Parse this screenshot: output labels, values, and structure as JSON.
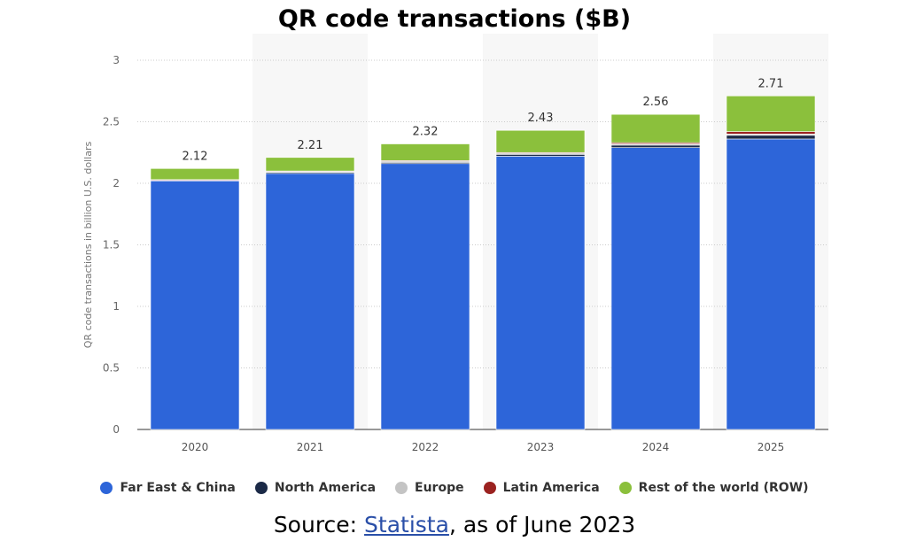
{
  "title": "QR code transactions ($B)",
  "source": {
    "prefix": "Source: ",
    "link": "Statista",
    "suffix": ", as of June 2023"
  },
  "chart_data": {
    "type": "bar",
    "stacked": true,
    "ylabel": "QR code transactions in billion U.S. dollars",
    "ylim": [
      0,
      3
    ],
    "yticks": [
      "0",
      "0.5",
      "1",
      "1.5",
      "2",
      "2.5",
      "3"
    ],
    "grid": true,
    "legend_position": "bottom",
    "categories": [
      "2020",
      "2021",
      "2022",
      "2023",
      "2024",
      "2025"
    ],
    "totals": [
      "2.12",
      "2.21",
      "2.32",
      "2.43",
      "2.56",
      "2.71"
    ],
    "series": [
      {
        "name": "Far East & China",
        "color": "#2d65d9",
        "values": [
          2.02,
          2.08,
          2.16,
          2.22,
          2.29,
          2.36
        ]
      },
      {
        "name": "North America",
        "color": "#1b2a47",
        "values": [
          0.005,
          0.01,
          0.01,
          0.015,
          0.02,
          0.03
        ]
      },
      {
        "name": "Europe",
        "color": "#c4c4c4",
        "values": [
          0.003,
          0.005,
          0.01,
          0.01,
          0.01,
          0.01
        ]
      },
      {
        "name": "Latin America",
        "color": "#9b2220",
        "values": [
          0.002,
          0.005,
          0.005,
          0.005,
          0.01,
          0.02
        ]
      },
      {
        "name": "Rest of the world (ROW)",
        "color": "#8bc03c",
        "values": [
          0.09,
          0.11,
          0.135,
          0.18,
          0.23,
          0.29
        ]
      }
    ]
  }
}
